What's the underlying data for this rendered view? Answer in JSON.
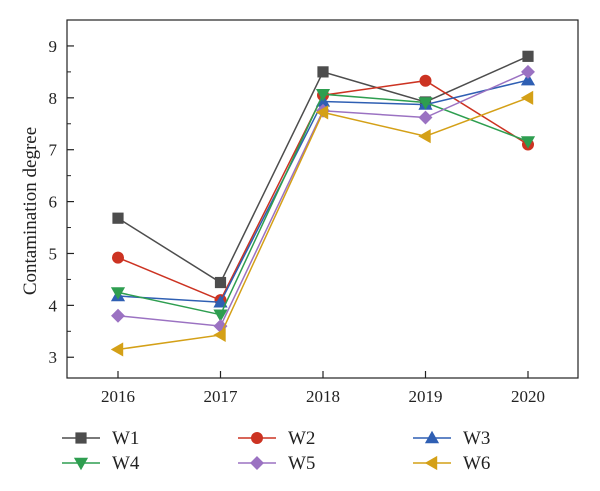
{
  "chart_data": {
    "type": "line",
    "title": "",
    "xlabel": "",
    "ylabel": "Contamination degree",
    "x": [
      "2016",
      "2017",
      "2018",
      "2019",
      "2020"
    ],
    "ylim": [
      2.6,
      9.5
    ],
    "yticks": [
      3,
      4,
      5,
      6,
      7,
      8,
      9
    ],
    "grid": false,
    "legend_position": "bottom",
    "series": [
      {
        "name": "W1",
        "color": "#4d4d4d",
        "marker": "square",
        "values": [
          5.68,
          4.44,
          8.5,
          7.92,
          8.8
        ]
      },
      {
        "name": "W2",
        "color": "#cc3322",
        "marker": "circle",
        "values": [
          4.92,
          4.1,
          8.05,
          8.33,
          7.1
        ]
      },
      {
        "name": "W3",
        "color": "#2f5fb3",
        "marker": "triangle-up",
        "values": [
          4.18,
          4.06,
          7.93,
          7.87,
          8.34
        ]
      },
      {
        "name": "W4",
        "color": "#2e9e50",
        "marker": "triangle-down",
        "values": [
          4.25,
          3.82,
          8.07,
          7.91,
          7.16
        ]
      },
      {
        "name": "W5",
        "color": "#9b72c2",
        "marker": "diamond",
        "values": [
          3.8,
          3.6,
          7.75,
          7.62,
          8.5
        ]
      },
      {
        "name": "W6",
        "color": "#d4a017",
        "marker": "triangle-left",
        "values": [
          3.15,
          3.43,
          7.72,
          7.26,
          8.0
        ]
      }
    ]
  }
}
